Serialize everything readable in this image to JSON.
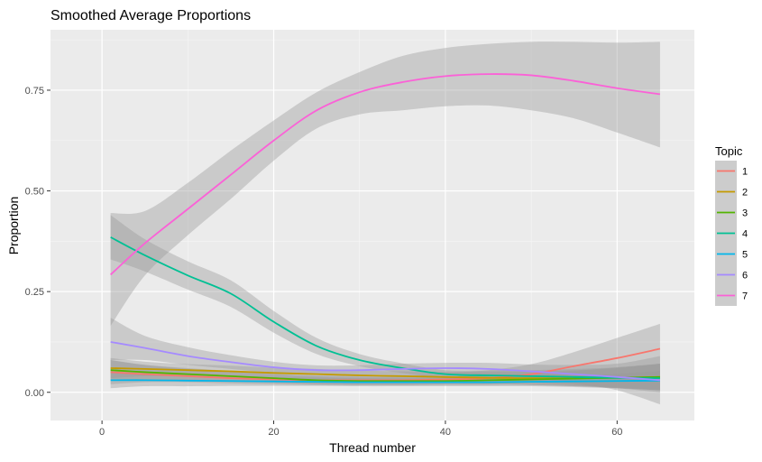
{
  "chart_data": {
    "type": "line",
    "title": "Smoothed Average Proportions",
    "xlabel": "Thread number",
    "ylabel": "Proportion",
    "xlim": [
      -6,
      69
    ],
    "ylim": [
      -0.07,
      0.9
    ],
    "x_ticks": [
      0,
      20,
      40,
      60
    ],
    "x_tick_labels": [
      "0",
      "20",
      "40",
      "60"
    ],
    "y_ticks": [
      0,
      0.25,
      0.5,
      0.75
    ],
    "y_tick_labels": [
      "0.00",
      "0.25",
      "0.50",
      "0.75"
    ],
    "grid": true,
    "legend": {
      "title": "Topic",
      "position": "right"
    },
    "x": [
      1,
      5,
      10,
      15,
      20,
      25,
      30,
      35,
      40,
      45,
      50,
      55,
      60,
      65
    ],
    "series": [
      {
        "name": "1",
        "color": "#F8766D",
        "values": [
          0.05,
          0.045,
          0.04,
          0.035,
          0.032,
          0.03,
          0.03,
          0.03,
          0.032,
          0.035,
          0.045,
          0.065,
          0.085,
          0.108
        ],
        "lower": [
          0.02,
          0.025,
          0.025,
          0.022,
          0.02,
          0.018,
          0.018,
          0.018,
          0.02,
          0.02,
          0.025,
          0.03,
          0.035,
          0.04
        ],
        "upper": [
          0.08,
          0.068,
          0.058,
          0.05,
          0.045,
          0.042,
          0.042,
          0.045,
          0.048,
          0.055,
          0.07,
          0.1,
          0.135,
          0.17
        ]
      },
      {
        "name": "2",
        "color": "#C49A00",
        "values": [
          0.06,
          0.058,
          0.055,
          0.052,
          0.048,
          0.045,
          0.042,
          0.04,
          0.038,
          0.036,
          0.035,
          0.035,
          0.036,
          0.038
        ],
        "lower": [
          0.035,
          0.04,
          0.04,
          0.038,
          0.035,
          0.032,
          0.03,
          0.028,
          0.025,
          0.022,
          0.018,
          0.015,
          0.012,
          0.005
        ],
        "upper": [
          0.085,
          0.076,
          0.07,
          0.066,
          0.061,
          0.058,
          0.054,
          0.052,
          0.051,
          0.05,
          0.052,
          0.055,
          0.06,
          0.071
        ]
      },
      {
        "name": "3",
        "color": "#53B400",
        "values": [
          0.055,
          0.05,
          0.045,
          0.04,
          0.035,
          0.03,
          0.028,
          0.028,
          0.028,
          0.03,
          0.032,
          0.034,
          0.036,
          0.038
        ],
        "lower": [
          0.03,
          0.032,
          0.03,
          0.027,
          0.024,
          0.02,
          0.018,
          0.018,
          0.018,
          0.018,
          0.018,
          0.015,
          0.01,
          0.005
        ],
        "upper": [
          0.08,
          0.068,
          0.06,
          0.053,
          0.046,
          0.04,
          0.038,
          0.038,
          0.038,
          0.042,
          0.046,
          0.053,
          0.062,
          0.071
        ]
      },
      {
        "name": "4",
        "color": "#00C094",
        "values": [
          0.385,
          0.34,
          0.29,
          0.245,
          0.175,
          0.115,
          0.08,
          0.06,
          0.045,
          0.042,
          0.04,
          0.038,
          0.036,
          0.035
        ],
        "lower": [
          0.33,
          0.3,
          0.255,
          0.212,
          0.148,
          0.095,
          0.065,
          0.048,
          0.035,
          0.03,
          0.025,
          0.018,
          0.01,
          0.0
        ],
        "upper": [
          0.44,
          0.38,
          0.325,
          0.278,
          0.202,
          0.135,
          0.095,
          0.072,
          0.055,
          0.054,
          0.055,
          0.058,
          0.062,
          0.07
        ]
      },
      {
        "name": "5",
        "color": "#00B6EB",
        "values": [
          0.03,
          0.03,
          0.029,
          0.028,
          0.027,
          0.026,
          0.025,
          0.025,
          0.025,
          0.025,
          0.026,
          0.027,
          0.028,
          0.029
        ],
        "lower": [
          0.01,
          0.015,
          0.015,
          0.016,
          0.016,
          0.016,
          0.015,
          0.015,
          0.015,
          0.015,
          0.015,
          0.013,
          0.01,
          0.005
        ],
        "upper": [
          0.05,
          0.045,
          0.043,
          0.04,
          0.038,
          0.036,
          0.035,
          0.035,
          0.035,
          0.035,
          0.037,
          0.041,
          0.046,
          0.053
        ]
      },
      {
        "name": "6",
        "color": "#A58AFF",
        "values": [
          0.125,
          0.11,
          0.09,
          0.075,
          0.062,
          0.055,
          0.055,
          0.058,
          0.06,
          0.058,
          0.052,
          0.045,
          0.038,
          0.03
        ],
        "lower": [
          0.08,
          0.08,
          0.068,
          0.058,
          0.048,
          0.043,
          0.043,
          0.045,
          0.047,
          0.043,
          0.035,
          0.022,
          0.005,
          -0.03
        ],
        "upper": [
          0.185,
          0.14,
          0.112,
          0.092,
          0.076,
          0.067,
          0.067,
          0.071,
          0.073,
          0.073,
          0.069,
          0.068,
          0.071,
          0.09
        ]
      },
      {
        "name": "7",
        "color": "#FB61D7",
        "values": [
          0.292,
          0.37,
          0.455,
          0.54,
          0.625,
          0.7,
          0.745,
          0.77,
          0.785,
          0.79,
          0.787,
          0.773,
          0.755,
          0.74
        ],
        "lower": [
          0.165,
          0.29,
          0.39,
          0.48,
          0.575,
          0.655,
          0.69,
          0.7,
          0.71,
          0.712,
          0.7,
          0.68,
          0.645,
          0.608
        ],
        "upper": [
          0.445,
          0.45,
          0.52,
          0.6,
          0.675,
          0.745,
          0.795,
          0.835,
          0.855,
          0.865,
          0.87,
          0.87,
          0.868,
          0.87
        ]
      }
    ]
  }
}
